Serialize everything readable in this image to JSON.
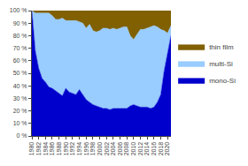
{
  "chart_data": {
    "type": "area",
    "stacked": true,
    "x": [
      1980,
      1981,
      1982,
      1983,
      1984,
      1985,
      1986,
      1987,
      1988,
      1989,
      1990,
      1991,
      1992,
      1993,
      1994,
      1995,
      1996,
      1997,
      1998,
      1999,
      2000,
      2001,
      2002,
      2003,
      2004,
      2005,
      2006,
      2007,
      2008,
      2009,
      2010,
      2011,
      2012,
      2013,
      2014,
      2015,
      2016,
      2017,
      2018,
      2019,
      2020,
      2021
    ],
    "series": [
      {
        "name": "mono-Si",
        "color": "#0000cc",
        "values": [
          100,
          68,
          54,
          46,
          43,
          39,
          38,
          36,
          34,
          32,
          38,
          35,
          34,
          33,
          37,
          33,
          29,
          27,
          25,
          24,
          23,
          22,
          22,
          21,
          22,
          22,
          22,
          22,
          22,
          24,
          25,
          24,
          23,
          23,
          23,
          22,
          23,
          27,
          33,
          52,
          65,
          80
        ]
      },
      {
        "name": "multi-Si",
        "color": "#99ccff",
        "values": [
          0,
          30,
          44,
          52,
          55,
          59,
          58,
          57,
          59,
          62,
          54,
          57,
          58,
          59,
          54,
          57,
          57,
          62,
          59,
          59,
          61,
          64,
          64,
          64,
          64,
          63,
          64,
          65,
          65,
          56,
          52,
          57,
          62,
          62,
          63,
          65,
          65,
          60,
          52,
          32,
          17,
          8
        ]
      },
      {
        "name": "thin film",
        "color": "#806000",
        "values": [
          0,
          2,
          2,
          2,
          2,
          2,
          4,
          7,
          7,
          6,
          8,
          8,
          8,
          8,
          9,
          10,
          14,
          11,
          16,
          17,
          16,
          14,
          14,
          15,
          14,
          15,
          14,
          13,
          13,
          20,
          23,
          19,
          15,
          15,
          14,
          13,
          12,
          13,
          15,
          16,
          18,
          12
        ]
      }
    ],
    "xlim": [
      1980,
      2021
    ],
    "xticks": [
      1980,
      1982,
      1984,
      1986,
      1988,
      1990,
      1992,
      1994,
      1996,
      1998,
      2000,
      2002,
      2004,
      2006,
      2008,
      2010,
      2012,
      2014,
      2016,
      2018,
      2020
    ],
    "ylim": [
      0,
      100
    ],
    "yticks": [
      {
        "value": 0,
        "label": "0 %"
      },
      {
        "value": 10,
        "label": "10 %"
      },
      {
        "value": 20,
        "label": "20 %"
      },
      {
        "value": 30,
        "label": "30 %"
      },
      {
        "value": 40,
        "label": "40 %"
      },
      {
        "value": 50,
        "label": "50 %"
      },
      {
        "value": 60,
        "label": "60 %"
      },
      {
        "value": 70,
        "label": "70 %"
      },
      {
        "value": 80,
        "label": "80 %"
      },
      {
        "value": 90,
        "label": "90 %"
      },
      {
        "value": 100,
        "label": "100 %"
      }
    ],
    "grid": false,
    "legend": "right"
  }
}
